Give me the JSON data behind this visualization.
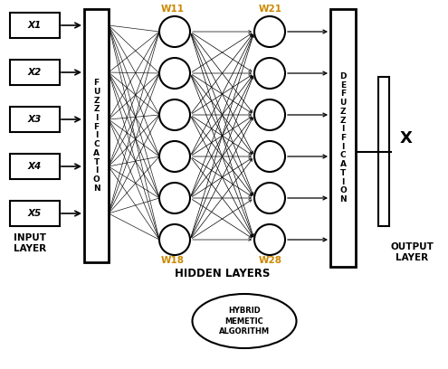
{
  "input_labels": [
    "X1",
    "X2",
    "X3",
    "X4",
    "X5"
  ],
  "fuzzification_text": "F\nU\nZ\nZ\nI\nF\nI\nC\nA\nT\nI\nO\nN",
  "defuzzification_text": "D\nE\nF\nU\nZ\nZ\nI\nF\nI\nC\nA\nT\nI\nO\nN",
  "hidden_layers_label": "HIDDEN LAYERS",
  "input_layer_label": "INPUT\nLAYER",
  "output_layer_label": "OUTPUT\nLAYER",
  "output_label": "X",
  "w11_label": "W11",
  "w18_label": "W18",
  "w21_label": "W21",
  "w28_label": "W28",
  "hybrid_label": "HYBRID\nMEMETIC\nALGORITHM",
  "bg_color": "#ffffff",
  "weight_color": "#cc8800",
  "n_inputs": 5,
  "n_hidden1": 6,
  "n_hidden2": 6,
  "figsize": [
    4.95,
    4.08
  ],
  "dpi": 100
}
